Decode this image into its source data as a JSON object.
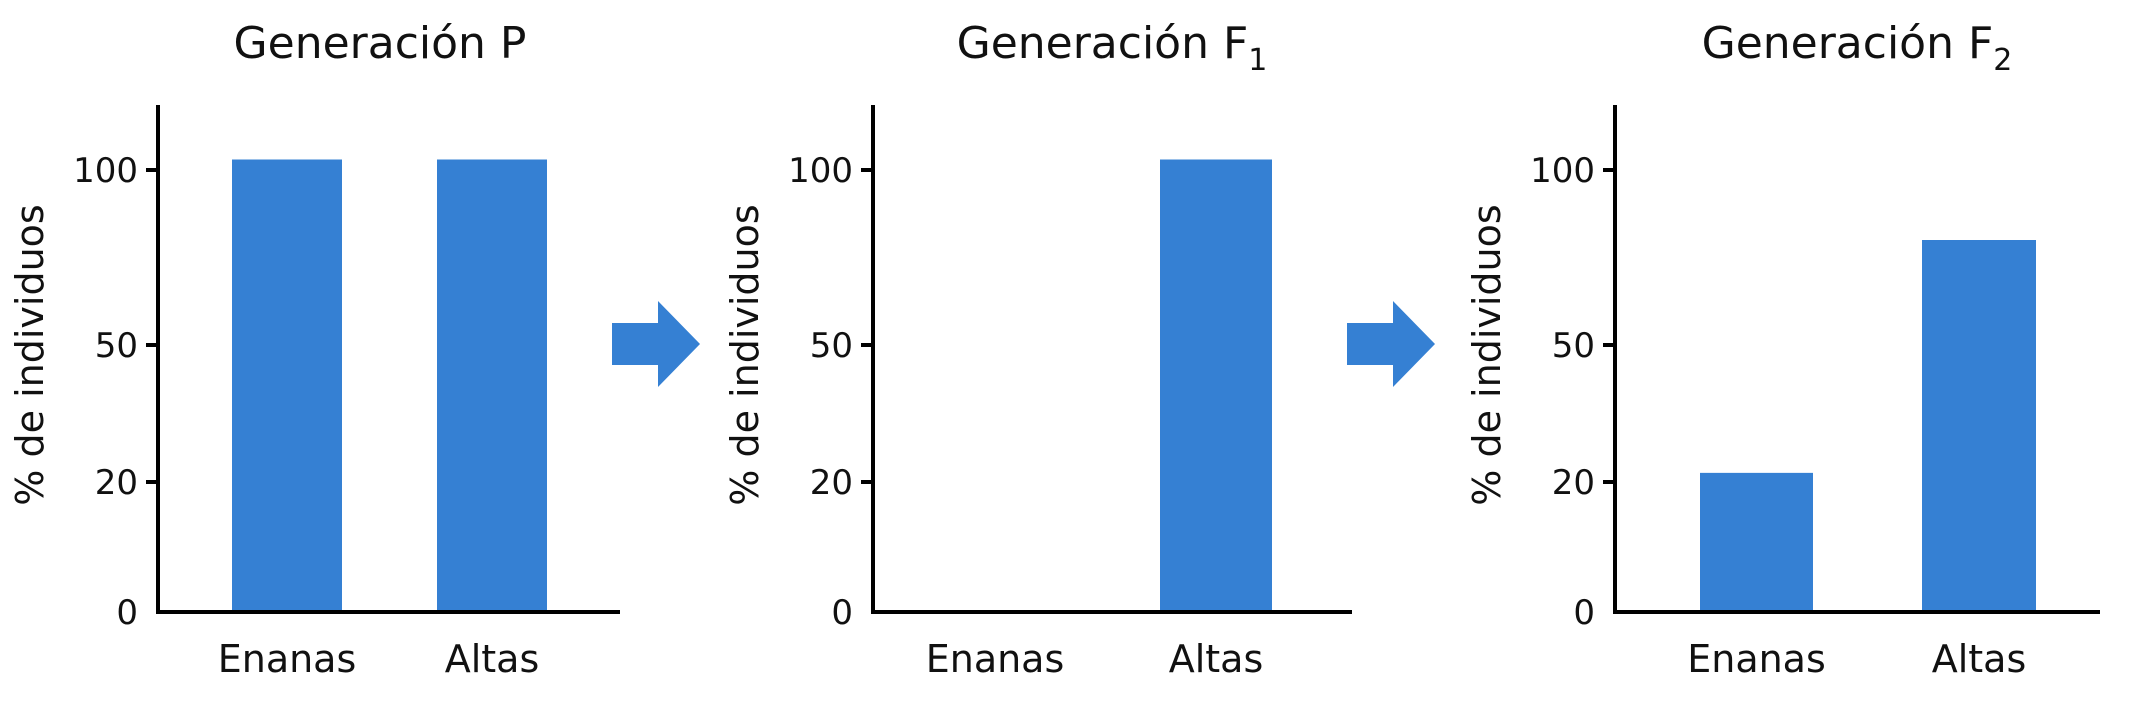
{
  "chart_data": [
    {
      "type": "bar",
      "title": "Generación P",
      "title_subscript": "",
      "ylabel": "% de individuos",
      "categories": [
        "Enanas",
        "Altas"
      ],
      "values": [
        103,
        103
      ],
      "yticks": [
        0,
        20,
        50,
        100
      ],
      "bar_color": "#3580d3"
    },
    {
      "type": "bar",
      "title": "Generación F",
      "title_subscript": "1",
      "ylabel": "% de individuos",
      "categories": [
        "Enanas",
        "Altas"
      ],
      "values": [
        0,
        103
      ],
      "yticks": [
        0,
        20,
        50,
        100
      ],
      "bar_color": "#3580d3"
    },
    {
      "type": "bar",
      "title": "Generación F",
      "title_subscript": "2",
      "ylabel": "% de individuos",
      "categories": [
        "Enanas",
        "Altas"
      ],
      "values": [
        22,
        80
      ],
      "yticks": [
        0,
        20,
        50,
        100
      ],
      "bar_color": "#3580d3"
    }
  ],
  "arrows": [
    {
      "icon": "right-arrow-icon",
      "color": "#3580d3"
    },
    {
      "icon": "right-arrow-icon",
      "color": "#3580d3"
    }
  ]
}
